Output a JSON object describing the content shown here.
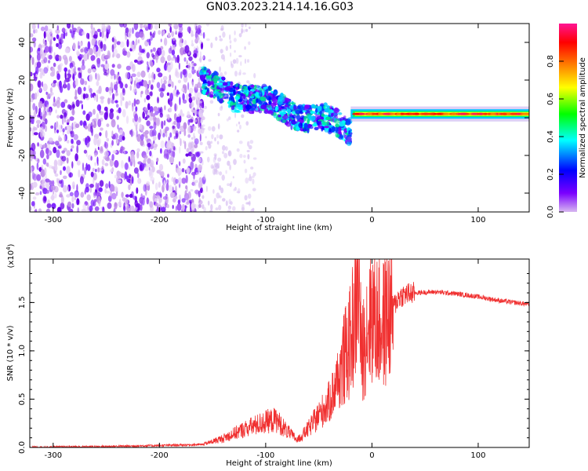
{
  "title": "GN03.2023.214.14.16.G03",
  "chart_data": [
    {
      "type": "heatmap",
      "xlabel": "Height of straight line (km)",
      "ylabel": "Frequency (Hz)",
      "xlim": [
        -322,
        148
      ],
      "ylim": [
        -50,
        50
      ],
      "xticks": [
        -300,
        -200,
        -100,
        0,
        100
      ],
      "yticks": [
        -40,
        -20,
        0,
        20,
        40
      ],
      "colorbar": {
        "label": "Normalized spectral amplitude",
        "range": [
          0,
          1
        ],
        "ticks": [
          "0.0",
          "0.2",
          "0.4",
          "0.6",
          "0.8"
        ],
        "colormap": [
          "#d8b8f0",
          "#7a00ff",
          "#0000ff",
          "#00ffff",
          "#00ff00",
          "#ffff00",
          "#ff7f00",
          "#ff0000",
          "#ff1493"
        ]
      },
      "features": [
        {
          "region": "noise",
          "x": [
            -322,
            -160
          ],
          "y": [
            -50,
            50
          ],
          "amplitude": 0.1
        },
        {
          "region": "descending_track",
          "x": [
            -160,
            -20
          ],
          "y": [
            18,
            -8
          ],
          "amplitude": 0.35
        },
        {
          "region": "flat_track",
          "x": [
            -20,
            148
          ],
          "y": [
            2,
            2
          ],
          "amplitude": 0.85
        }
      ]
    },
    {
      "type": "line",
      "xlabel": "Height of straight line (km)",
      "ylabel": "SNR (10 * v/v)",
      "ylabel_scale": "(x10",
      "ylabel_scale_exp": "4",
      "scale_close": ")",
      "xlim": [
        -322,
        148
      ],
      "ylim": [
        0,
        1.95
      ],
      "xticks": [
        -300,
        -200,
        -100,
        0,
        100
      ],
      "yticks": [
        "0.0",
        "0.5",
        "1.0",
        "1.5"
      ],
      "color": "#f03030",
      "series": [
        {
          "x": [
            -322,
            -250,
            -200,
            -160,
            -140,
            -120,
            -100,
            -90,
            -80,
            -70,
            -60,
            -50,
            -40,
            -35,
            -30,
            -25,
            -20,
            -15,
            -12,
            -10,
            -5,
            0,
            5,
            10,
            15,
            20,
            25,
            30,
            40,
            60,
            80,
            100,
            120,
            148
          ],
          "values": [
            0.0,
            0.01,
            0.02,
            0.03,
            0.1,
            0.2,
            0.28,
            0.3,
            0.18,
            0.08,
            0.2,
            0.35,
            0.5,
            0.65,
            0.8,
            0.95,
            1.1,
            1.5,
            1.85,
            0.9,
            1.25,
            1.4,
            1.3,
            1.25,
            1.4,
            1.45,
            1.55,
            1.58,
            1.6,
            1.61,
            1.59,
            1.56,
            1.52,
            1.48
          ]
        }
      ]
    }
  ]
}
